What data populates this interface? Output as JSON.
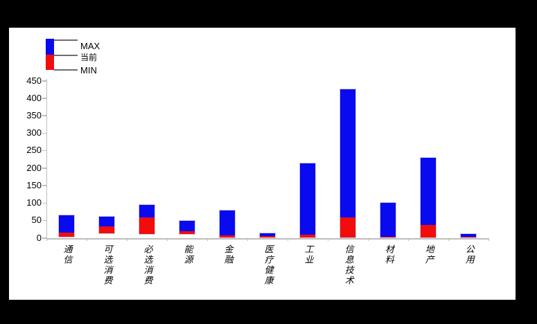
{
  "background": {
    "canvas_color": "#000000",
    "page_color": "#ffffff"
  },
  "legend": {
    "max_label": "MAX",
    "current_label": "当前",
    "min_label": "MIN"
  },
  "chart_data": {
    "type": "bar",
    "subtype": "floating-range-bars",
    "title": "",
    "xlabel": "",
    "ylabel": "",
    "grid": false,
    "legend_position": "top-left",
    "ylim": [
      0,
      450
    ],
    "ytick_step": 50,
    "yticks": [
      450,
      400,
      350,
      300,
      250,
      200,
      150,
      100,
      50,
      0
    ],
    "categories": [
      "通信",
      "可选消费",
      "必选消费",
      "能源",
      "金融",
      "医疗健康",
      "工业",
      "信息技术",
      "材料",
      "地产",
      "公用"
    ],
    "series": [
      {
        "name": "MIN",
        "values": [
          3,
          12,
          10,
          10,
          1,
          1,
          1,
          1,
          1,
          1,
          0
        ]
      },
      {
        "name": "当前",
        "values": [
          14,
          33,
          58,
          18,
          6,
          5,
          9,
          58,
          3,
          36,
          2
        ]
      },
      {
        "name": "MAX",
        "values": [
          65,
          61,
          95,
          48,
          78,
          12,
          214,
          426,
          101,
          228,
          11
        ]
      }
    ],
    "bar_semantics": "Each bar spans MIN to MAX; red segment covers MIN to 当前 (current), blue segment covers 当前 to MAX",
    "colors": {
      "range_blue": "#0a0af0",
      "current_red": "#f20c0c",
      "axis_gray": "#bdbdbd",
      "text_black": "#000000"
    }
  }
}
